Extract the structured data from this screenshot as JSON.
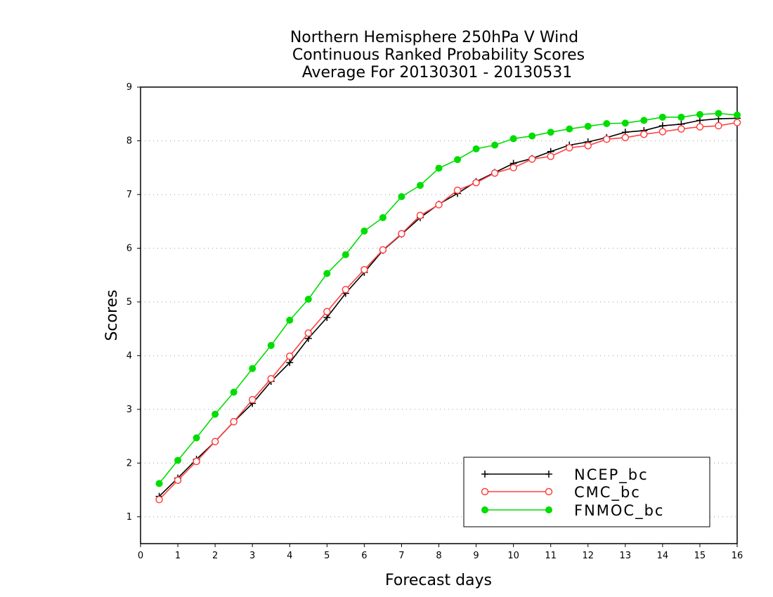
{
  "chart_data": {
    "type": "line",
    "title": [
      "Northern Hemisphere 250hPa V Wind",
      "Continuous Ranked Probability Scores",
      "Average For 20130301 - 20130531"
    ],
    "xlabel": "Forecast days",
    "ylabel": "Scores",
    "xlim": [
      0,
      16
    ],
    "ylim": [
      0.5,
      9
    ],
    "xticks": [
      "0",
      "1",
      "2",
      "3",
      "4",
      "5",
      "6",
      "7",
      "8",
      "9",
      "10",
      "11",
      "12",
      "13",
      "14",
      "15",
      "16"
    ],
    "yticks": [
      "1",
      "2",
      "3",
      "4",
      "5",
      "6",
      "7",
      "8",
      "9"
    ],
    "grid": "horizontal-dotted",
    "legend_position": "bottom-right",
    "x": [
      0.5,
      1,
      1.5,
      2,
      2.5,
      3,
      3.5,
      4,
      4.5,
      5,
      5.5,
      6,
      6.5,
      7,
      7.5,
      8,
      8.5,
      9,
      9.5,
      10,
      10.5,
      11,
      11.5,
      12,
      12.5,
      13,
      13.5,
      14,
      14.5,
      15,
      15.5,
      16
    ],
    "series": [
      {
        "name": "NCEP_bc",
        "color": "#000000",
        "marker": "plus",
        "values": [
          1.38,
          1.72,
          2.07,
          2.4,
          2.77,
          3.11,
          3.52,
          3.87,
          4.32,
          4.71,
          5.16,
          5.55,
          5.96,
          6.26,
          6.57,
          6.82,
          7.02,
          7.24,
          7.41,
          7.58,
          7.67,
          7.8,
          7.92,
          7.98,
          8.06,
          8.16,
          8.19,
          8.28,
          8.31,
          8.38,
          8.41,
          8.42
        ]
      },
      {
        "name": "CMC_bc",
        "color": "#ff4040",
        "marker": "open-circle",
        "values": [
          1.32,
          1.68,
          2.03,
          2.4,
          2.77,
          3.18,
          3.57,
          3.99,
          4.42,
          4.82,
          5.23,
          5.6,
          5.97,
          6.27,
          6.61,
          6.81,
          7.08,
          7.22,
          7.4,
          7.5,
          7.66,
          7.71,
          7.87,
          7.91,
          8.03,
          8.06,
          8.12,
          8.17,
          8.22,
          8.26,
          8.28,
          8.34
        ]
      },
      {
        "name": "FNMOC_bc",
        "color": "#00dd00",
        "marker": "filled-circle",
        "values": [
          1.62,
          2.05,
          2.47,
          2.91,
          3.32,
          3.76,
          4.19,
          4.66,
          5.05,
          5.53,
          5.88,
          6.32,
          6.57,
          6.96,
          7.17,
          7.49,
          7.65,
          7.85,
          7.92,
          8.04,
          8.09,
          8.16,
          8.22,
          8.27,
          8.32,
          8.33,
          8.38,
          8.44,
          8.44,
          8.49,
          8.51,
          8.48
        ]
      }
    ]
  }
}
